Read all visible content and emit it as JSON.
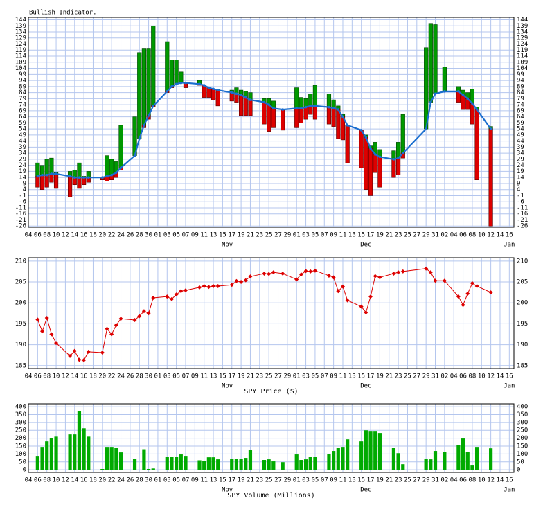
{
  "chart_data": [
    {
      "type": "range",
      "title": "Bullish Indicator.",
      "x": [
        2,
        3,
        4,
        5,
        6,
        9,
        10,
        11,
        12,
        13,
        16,
        17,
        18,
        19,
        20,
        23,
        24,
        25,
        26,
        27,
        30,
        31,
        32,
        33,
        34,
        37,
        38,
        39,
        40,
        41,
        44,
        45,
        46,
        47,
        48,
        51,
        52,
        53,
        55,
        58,
        59,
        60,
        61,
        62,
        65,
        66,
        67,
        68,
        69,
        72,
        73,
        74,
        75,
        76,
        79,
        80,
        81,
        86,
        87,
        88,
        90,
        93,
        94,
        95,
        96,
        97,
        100
      ],
      "high": [
        26,
        24,
        29,
        30,
        18,
        19,
        20,
        26,
        15,
        19,
        14,
        32,
        29,
        27,
        57,
        64,
        117,
        120,
        120,
        139,
        126,
        111,
        111,
        101,
        92,
        94,
        89,
        88,
        87,
        87,
        86,
        88,
        86,
        85,
        84,
        79,
        79,
        77,
        70,
        88,
        80,
        79,
        83,
        90,
        83,
        78,
        73,
        66,
        57,
        53,
        49,
        40,
        43,
        37,
        36,
        43,
        66,
        121,
        141,
        140,
        105,
        89,
        86,
        84,
        87,
        72,
        56
      ],
      "low": [
        6,
        4,
        6,
        10,
        5,
        -2,
        8,
        5,
        8,
        10,
        12,
        11,
        12,
        14,
        20,
        32,
        47,
        55,
        62,
        72,
        84,
        88,
        92,
        92,
        88,
        90,
        80,
        80,
        78,
        73,
        77,
        76,
        65,
        65,
        65,
        58,
        52,
        55,
        53,
        55,
        59,
        62,
        66,
        62,
        58,
        56,
        46,
        45,
        26,
        22,
        4,
        -1,
        18,
        6,
        14,
        16,
        30,
        55,
        78,
        83,
        85,
        76,
        70,
        70,
        58,
        12,
        -26
      ],
      "line": [
        15,
        16,
        16,
        17,
        17,
        15,
        14,
        14,
        14,
        14,
        14,
        15,
        16,
        18,
        22,
        32,
        46,
        57,
        65,
        73,
        85,
        89,
        91,
        92,
        92,
        91,
        90,
        88,
        87,
        86,
        84,
        83,
        82,
        80,
        78,
        76,
        74,
        71,
        70,
        71,
        71,
        72,
        73,
        73,
        72,
        71,
        70,
        64,
        57,
        53,
        47,
        38,
        33,
        31,
        29,
        30,
        34,
        54,
        76,
        83,
        85,
        85,
        82,
        79,
        75,
        70,
        54
      ],
      "up_color": "#009900",
      "down_color": "#dd0000",
      "line_color": "#1a6ecf",
      "xlim": [
        0,
        105
      ],
      "xticks": [
        {
          "value": 0,
          "label": "04"
        },
        {
          "value": 2,
          "label": "06"
        },
        {
          "value": 4,
          "label": "08"
        },
        {
          "value": 6,
          "label": "10"
        },
        {
          "value": 8,
          "label": "12"
        },
        {
          "value": 10,
          "label": "14"
        },
        {
          "value": 12,
          "label": "16"
        },
        {
          "value": 14,
          "label": "18"
        },
        {
          "value": 16,
          "label": "20"
        },
        {
          "value": 18,
          "label": "22"
        },
        {
          "value": 20,
          "label": "24"
        },
        {
          "value": 22,
          "label": "26"
        },
        {
          "value": 24,
          "label": "28"
        },
        {
          "value": 26,
          "label": "30"
        },
        {
          "value": 28,
          "label": "01"
        },
        {
          "value": 30,
          "label": "03"
        },
        {
          "value": 32,
          "label": "05"
        },
        {
          "value": 34,
          "label": "07"
        },
        {
          "value": 36,
          "label": "09"
        },
        {
          "value": 38,
          "label": "11"
        },
        {
          "value": 40,
          "label": "13"
        },
        {
          "value": 42,
          "label": "15"
        },
        {
          "value": 44,
          "label": "17"
        },
        {
          "value": 46,
          "label": "19"
        },
        {
          "value": 48,
          "label": "21"
        },
        {
          "value": 50,
          "label": "23"
        },
        {
          "value": 52,
          "label": "25"
        },
        {
          "value": 54,
          "label": "27"
        },
        {
          "value": 56,
          "label": "29"
        },
        {
          "value": 58,
          "label": "01"
        },
        {
          "value": 60,
          "label": "03"
        },
        {
          "value": 62,
          "label": "05"
        },
        {
          "value": 64,
          "label": "07"
        },
        {
          "value": 66,
          "label": "09"
        },
        {
          "value": 68,
          "label": "11"
        },
        {
          "value": 70,
          "label": "13"
        },
        {
          "value": 72,
          "label": "15"
        },
        {
          "value": 74,
          "label": "17"
        },
        {
          "value": 76,
          "label": "19"
        },
        {
          "value": 78,
          "label": "21"
        },
        {
          "value": 80,
          "label": "23"
        },
        {
          "value": 82,
          "label": "25"
        },
        {
          "value": 84,
          "label": "27"
        },
        {
          "value": 86,
          "label": "29"
        },
        {
          "value": 88,
          "label": "31"
        },
        {
          "value": 90,
          "label": "02"
        },
        {
          "value": 92,
          "label": "04"
        },
        {
          "value": 94,
          "label": "06"
        },
        {
          "value": 96,
          "label": "08"
        },
        {
          "value": 98,
          "label": "10"
        },
        {
          "value": 100,
          "label": "12"
        },
        {
          "value": 102,
          "label": "14"
        },
        {
          "value": 104,
          "label": "16"
        }
      ],
      "month_labels": [
        {
          "value": 43,
          "label": "Nov"
        },
        {
          "value": 73,
          "label": "Dec"
        },
        {
          "value": 104,
          "label": "Jan"
        }
      ],
      "ylim": [
        -27,
        146
      ],
      "yticks": [
        -26,
        -21,
        -16,
        -11,
        -6,
        -1,
        4,
        9,
        14,
        19,
        24,
        29,
        34,
        39,
        44,
        49,
        54,
        59,
        64,
        69,
        74,
        79,
        84,
        89,
        94,
        99,
        104,
        109,
        114,
        119,
        124,
        129,
        134,
        139,
        144
      ],
      "grid": true
    },
    {
      "type": "line",
      "xlabel": "SPY Price ($)",
      "x": [
        2,
        3,
        4,
        5,
        6,
        9,
        10,
        11,
        12,
        13,
        16,
        17,
        18,
        19,
        20,
        23,
        24,
        25,
        26,
        27,
        30,
        31,
        32,
        33,
        34,
        37,
        38,
        39,
        40,
        41,
        44,
        45,
        46,
        47,
        48,
        51,
        52,
        53,
        55,
        58,
        59,
        60,
        61,
        62,
        65,
        66,
        67,
        68,
        69,
        72,
        73,
        74,
        75,
        76,
        79,
        80,
        81,
        86,
        87,
        88,
        90,
        93,
        94,
        95,
        96,
        97,
        100
      ],
      "values": [
        196.0,
        193.2,
        196.4,
        192.5,
        190.4,
        187.3,
        188.5,
        186.4,
        186.3,
        188.3,
        188.1,
        193.8,
        192.5,
        194.7,
        196.2,
        195.9,
        196.8,
        198.0,
        197.5,
        201.2,
        201.5,
        200.9,
        202.0,
        202.8,
        203.0,
        203.7,
        204.0,
        203.8,
        204.0,
        204.0,
        204.3,
        205.2,
        205.0,
        205.4,
        206.3,
        207.0,
        206.9,
        207.3,
        207.0,
        205.6,
        206.8,
        207.6,
        207.5,
        207.7,
        206.5,
        206.1,
        202.8,
        203.9,
        200.6,
        199.1,
        197.7,
        201.5,
        206.4,
        206.1,
        207.0,
        207.3,
        207.5,
        208.2,
        207.3,
        205.3,
        205.3,
        201.5,
        199.5,
        202.2,
        204.7,
        204.0,
        202.5
      ],
      "color": "#dd0000",
      "xlim": [
        0,
        105
      ],
      "xticks": [
        {
          "value": 0,
          "label": "04"
        },
        {
          "value": 2,
          "label": "06"
        },
        {
          "value": 4,
          "label": "08"
        },
        {
          "value": 6,
          "label": "10"
        },
        {
          "value": 8,
          "label": "12"
        },
        {
          "value": 10,
          "label": "14"
        },
        {
          "value": 12,
          "label": "16"
        },
        {
          "value": 14,
          "label": "18"
        },
        {
          "value": 16,
          "label": "20"
        },
        {
          "value": 18,
          "label": "22"
        },
        {
          "value": 20,
          "label": "24"
        },
        {
          "value": 22,
          "label": "26"
        },
        {
          "value": 24,
          "label": "28"
        },
        {
          "value": 26,
          "label": "30"
        },
        {
          "value": 28,
          "label": "01"
        },
        {
          "value": 30,
          "label": "03"
        },
        {
          "value": 32,
          "label": "05"
        },
        {
          "value": 34,
          "label": "07"
        },
        {
          "value": 36,
          "label": "09"
        },
        {
          "value": 38,
          "label": "11"
        },
        {
          "value": 40,
          "label": "13"
        },
        {
          "value": 42,
          "label": "15"
        },
        {
          "value": 44,
          "label": "17"
        },
        {
          "value": 46,
          "label": "19"
        },
        {
          "value": 48,
          "label": "21"
        },
        {
          "value": 50,
          "label": "23"
        },
        {
          "value": 52,
          "label": "25"
        },
        {
          "value": 54,
          "label": "27"
        },
        {
          "value": 56,
          "label": "29"
        },
        {
          "value": 58,
          "label": "01"
        },
        {
          "value": 60,
          "label": "03"
        },
        {
          "value": 62,
          "label": "05"
        },
        {
          "value": 64,
          "label": "07"
        },
        {
          "value": 66,
          "label": "09"
        },
        {
          "value": 68,
          "label": "11"
        },
        {
          "value": 70,
          "label": "13"
        },
        {
          "value": 72,
          "label": "15"
        },
        {
          "value": 74,
          "label": "17"
        },
        {
          "value": 76,
          "label": "19"
        },
        {
          "value": 78,
          "label": "21"
        },
        {
          "value": 80,
          "label": "23"
        },
        {
          "value": 82,
          "label": "25"
        },
        {
          "value": 84,
          "label": "27"
        },
        {
          "value": 86,
          "label": "29"
        },
        {
          "value": 88,
          "label": "31"
        },
        {
          "value": 90,
          "label": "02"
        },
        {
          "value": 92,
          "label": "04"
        },
        {
          "value": 94,
          "label": "06"
        },
        {
          "value": 96,
          "label": "08"
        },
        {
          "value": 98,
          "label": "10"
        },
        {
          "value": 100,
          "label": "12"
        },
        {
          "value": 102,
          "label": "14"
        },
        {
          "value": 104,
          "label": "16"
        }
      ],
      "month_labels": [
        {
          "value": 43,
          "label": "Nov"
        },
        {
          "value": 73,
          "label": "Dec"
        },
        {
          "value": 104,
          "label": "Jan"
        }
      ],
      "ylim": [
        184.3,
        210.8
      ],
      "yticks": [
        185,
        190,
        195,
        200,
        205,
        210
      ],
      "grid": true
    },
    {
      "type": "bar",
      "xlabel": "SPY Volume (Millions)",
      "x": [
        2,
        3,
        4,
        5,
        6,
        9,
        10,
        11,
        12,
        13,
        16,
        17,
        18,
        19,
        20,
        23,
        25,
        26,
        27,
        30,
        31,
        32,
        33,
        34,
        37,
        38,
        39,
        40,
        41,
        44,
        45,
        46,
        47,
        48,
        51,
        52,
        53,
        55,
        58,
        59,
        60,
        61,
        62,
        65,
        66,
        67,
        68,
        69,
        72,
        73,
        74,
        75,
        76,
        79,
        80,
        81,
        86,
        87,
        88,
        90,
        93,
        94,
        95,
        96,
        97,
        100
      ],
      "values": [
        88,
        145,
        180,
        200,
        210,
        224,
        224,
        370,
        263,
        210,
        5,
        145,
        145,
        140,
        110,
        70,
        130,
        5,
        8,
        83,
        83,
        83,
        97,
        88,
        60,
        57,
        79,
        79,
        66,
        70,
        70,
        70,
        75,
        127,
        62,
        66,
        53,
        48,
        97,
        62,
        66,
        83,
        83,
        101,
        119,
        141,
        145,
        193,
        180,
        250,
        246,
        246,
        233,
        141,
        105,
        35,
        70,
        66,
        119,
        114,
        158,
        198,
        114,
        31,
        145,
        136
      ],
      "color": "#00aa00",
      "xlim": [
        0,
        105
      ],
      "xticks": [
        {
          "value": 0,
          "label": "04"
        },
        {
          "value": 2,
          "label": "06"
        },
        {
          "value": 4,
          "label": "08"
        },
        {
          "value": 6,
          "label": "10"
        },
        {
          "value": 8,
          "label": "12"
        },
        {
          "value": 10,
          "label": "14"
        },
        {
          "value": 12,
          "label": "16"
        },
        {
          "value": 14,
          "label": "18"
        },
        {
          "value": 16,
          "label": "20"
        },
        {
          "value": 18,
          "label": "22"
        },
        {
          "value": 20,
          "label": "24"
        },
        {
          "value": 22,
          "label": "26"
        },
        {
          "value": 24,
          "label": "28"
        },
        {
          "value": 26,
          "label": "30"
        },
        {
          "value": 28,
          "label": "01"
        },
        {
          "value": 30,
          "label": "03"
        },
        {
          "value": 32,
          "label": "05"
        },
        {
          "value": 34,
          "label": "07"
        },
        {
          "value": 36,
          "label": "09"
        },
        {
          "value": 38,
          "label": "11"
        },
        {
          "value": 40,
          "label": "13"
        },
        {
          "value": 42,
          "label": "15"
        },
        {
          "value": 44,
          "label": "17"
        },
        {
          "value": 46,
          "label": "19"
        },
        {
          "value": 48,
          "label": "21"
        },
        {
          "value": 50,
          "label": "23"
        },
        {
          "value": 52,
          "label": "25"
        },
        {
          "value": 54,
          "label": "27"
        },
        {
          "value": 56,
          "label": "29"
        },
        {
          "value": 58,
          "label": "01"
        },
        {
          "value": 60,
          "label": "03"
        },
        {
          "value": 62,
          "label": "05"
        },
        {
          "value": 64,
          "label": "07"
        },
        {
          "value": 66,
          "label": "09"
        },
        {
          "value": 68,
          "label": "11"
        },
        {
          "value": 70,
          "label": "13"
        },
        {
          "value": 72,
          "label": "15"
        },
        {
          "value": 74,
          "label": "17"
        },
        {
          "value": 76,
          "label": "19"
        },
        {
          "value": 78,
          "label": "21"
        },
        {
          "value": 80,
          "label": "23"
        },
        {
          "value": 82,
          "label": "25"
        },
        {
          "value": 84,
          "label": "27"
        },
        {
          "value": 86,
          "label": "29"
        },
        {
          "value": 88,
          "label": "31"
        },
        {
          "value": 90,
          "label": "02"
        },
        {
          "value": 92,
          "label": "04"
        },
        {
          "value": 94,
          "label": "06"
        },
        {
          "value": 96,
          "label": "08"
        },
        {
          "value": 98,
          "label": "10"
        },
        {
          "value": 100,
          "label": "12"
        },
        {
          "value": 102,
          "label": "14"
        },
        {
          "value": 104,
          "label": "16"
        }
      ],
      "month_labels": [
        {
          "value": 43,
          "label": "Nov"
        },
        {
          "value": 73,
          "label": "Dec"
        },
        {
          "value": 104,
          "label": "Jan"
        }
      ],
      "ylim": [
        -17,
        418
      ],
      "yticks": [
        0,
        50,
        100,
        150,
        200,
        250,
        300,
        350,
        400
      ],
      "grid": true
    }
  ]
}
